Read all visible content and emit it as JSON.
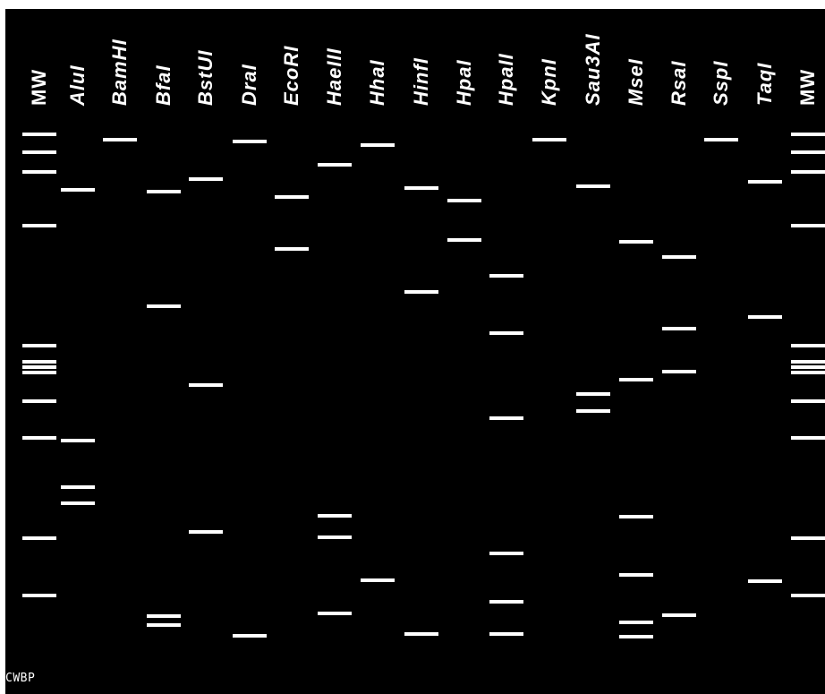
{
  "lanes": [
    {
      "label": "MW",
      "italic": false,
      "bands": [
        150,
        170,
        192,
        252,
        386,
        404,
        410,
        416,
        448,
        489,
        601,
        665
      ]
    },
    {
      "label": "AluI",
      "italic": true,
      "bands": [
        212,
        492,
        544,
        562
      ]
    },
    {
      "label": "BamHI",
      "italic": true,
      "bands": [
        156
      ]
    },
    {
      "label": "BfaI",
      "italic": true,
      "bands": [
        214,
        342,
        688,
        698
      ]
    },
    {
      "label": "BstUI",
      "italic": true,
      "bands": [
        200,
        430,
        594
      ]
    },
    {
      "label": "DraI",
      "italic": true,
      "bands": [
        158,
        710
      ]
    },
    {
      "label": "EcoRI",
      "italic": true,
      "bands": [
        220,
        278
      ]
    },
    {
      "label": "HaeIII",
      "italic": true,
      "bands": [
        184,
        576,
        600,
        685
      ]
    },
    {
      "label": "HhaI",
      "italic": true,
      "bands": [
        162,
        648
      ]
    },
    {
      "label": "HinfI",
      "italic": true,
      "bands": [
        210,
        326,
        708
      ]
    },
    {
      "label": "HpaI",
      "italic": true,
      "bands": [
        224,
        268
      ]
    },
    {
      "label": "HpaII",
      "italic": true,
      "bands": [
        308,
        372,
        467,
        618,
        672,
        708
      ]
    },
    {
      "label": "KpnI",
      "italic": true,
      "bands": [
        156
      ]
    },
    {
      "label": "Sau3AI",
      "italic": true,
      "bands": [
        208,
        440,
        459
      ]
    },
    {
      "label": "MseI",
      "italic": true,
      "bands": [
        270,
        424,
        577,
        642,
        695,
        711
      ]
    },
    {
      "label": "RsaI",
      "italic": true,
      "bands": [
        287,
        367,
        415,
        687
      ]
    },
    {
      "label": "SspI",
      "italic": true,
      "bands": [
        156
      ]
    },
    {
      "label": "TaqI",
      "italic": true,
      "bands": [
        203,
        354,
        649
      ]
    },
    {
      "label": "MW",
      "italic": false,
      "bands": [
        150,
        170,
        192,
        252,
        386,
        404,
        410,
        416,
        448,
        489,
        601,
        665
      ]
    }
  ],
  "credit": "CWBP",
  "colors": {
    "background": "#000000",
    "band": "#ffffff",
    "text": "#ffffff"
  }
}
